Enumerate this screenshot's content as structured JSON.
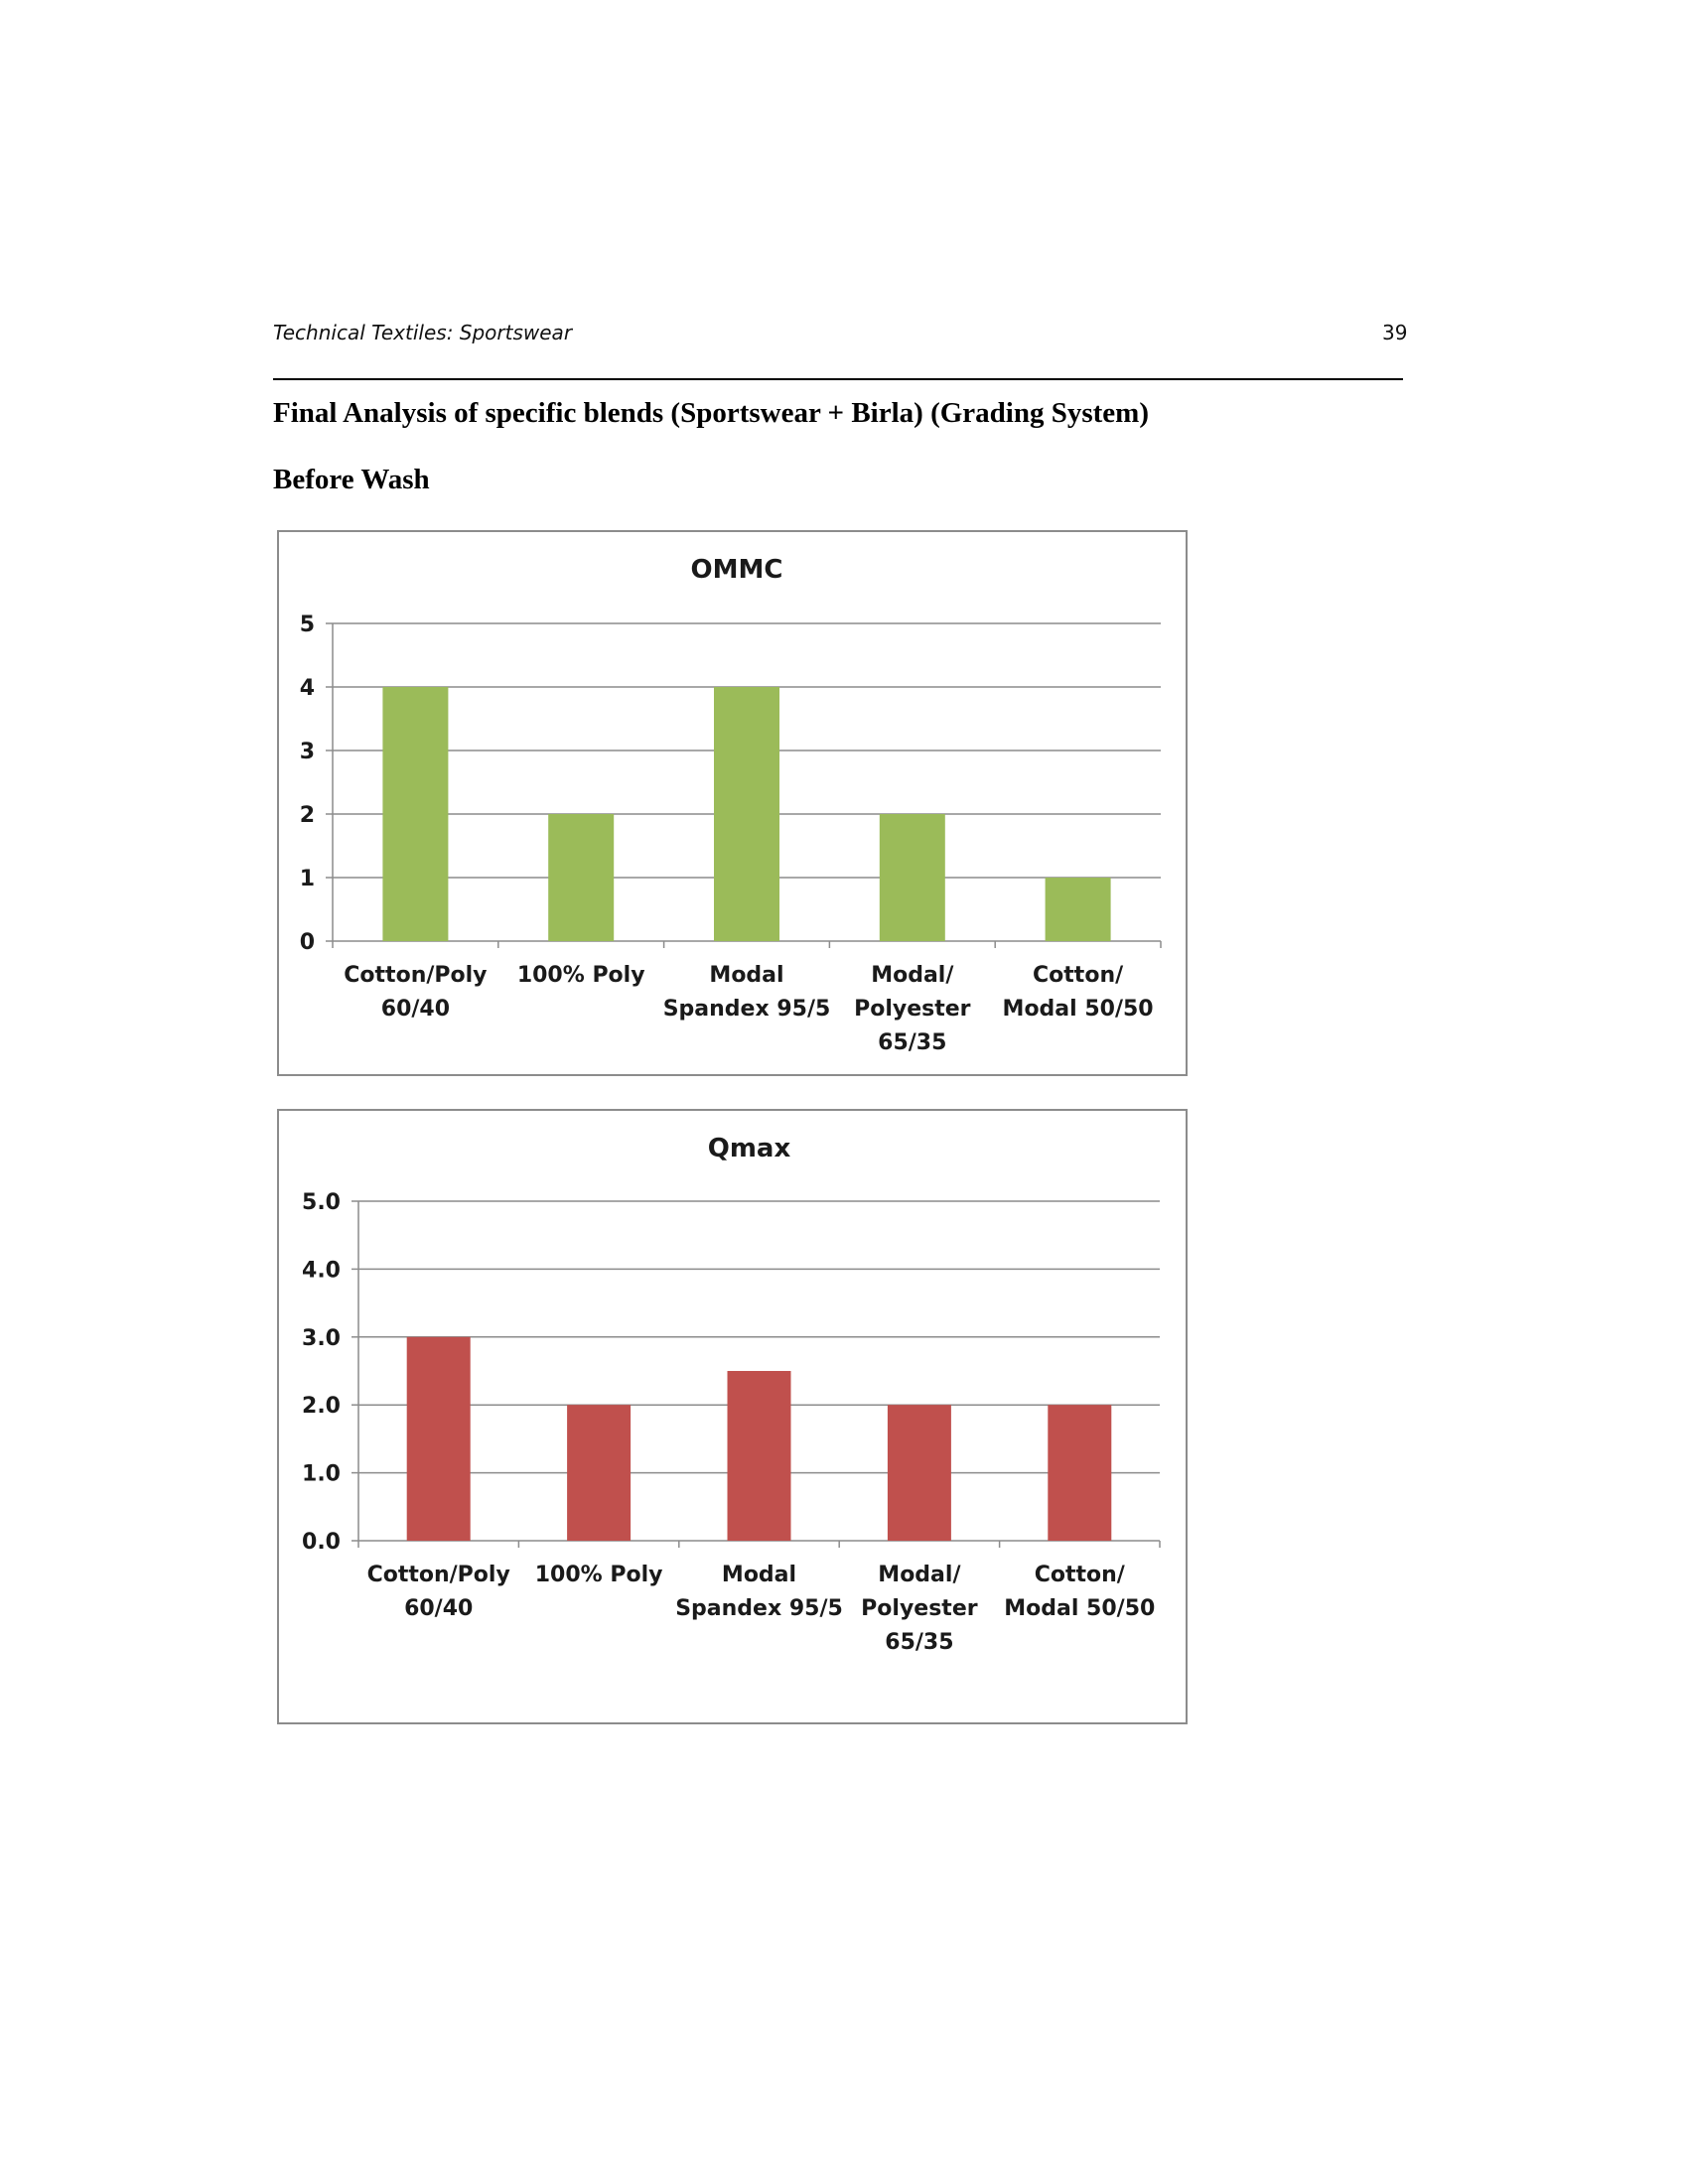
{
  "header": {
    "title": "Technical Textiles: Sportswear",
    "page_number": "39"
  },
  "headings": {
    "main": "Final Analysis of specific blends (Sportswear + Birla) (Grading System)",
    "sub": "Before Wash"
  },
  "chart_data": [
    {
      "type": "bar",
      "title": "OMMC",
      "categories": [
        [
          "Cotton/Poly",
          "60/40"
        ],
        [
          "100% Poly"
        ],
        [
          "Modal",
          "Spandex 95/5"
        ],
        [
          "Modal/",
          "Polyester",
          "65/35"
        ],
        [
          "Cotton/",
          "Modal 50/50"
        ]
      ],
      "values": [
        4,
        2,
        4,
        2,
        1
      ],
      "ylim": [
        0,
        5
      ],
      "yticks": [
        "0",
        "1",
        "2",
        "3",
        "4",
        "5"
      ],
      "grid": true,
      "color": "#9bbb59"
    },
    {
      "type": "bar",
      "title": "Qmax",
      "categories": [
        [
          "Cotton/Poly",
          "60/40"
        ],
        [
          "100% Poly"
        ],
        [
          "Modal",
          "Spandex 95/5"
        ],
        [
          "Modal/",
          "Polyester",
          "65/35"
        ],
        [
          "Cotton/",
          "Modal 50/50"
        ]
      ],
      "values": [
        3.0,
        2.0,
        2.5,
        2.0,
        2.0
      ],
      "ylim": [
        0,
        5
      ],
      "yticks": [
        "0.0",
        "1.0",
        "2.0",
        "3.0",
        "4.0",
        "5.0"
      ],
      "grid": true,
      "color": "#c0504d"
    }
  ]
}
